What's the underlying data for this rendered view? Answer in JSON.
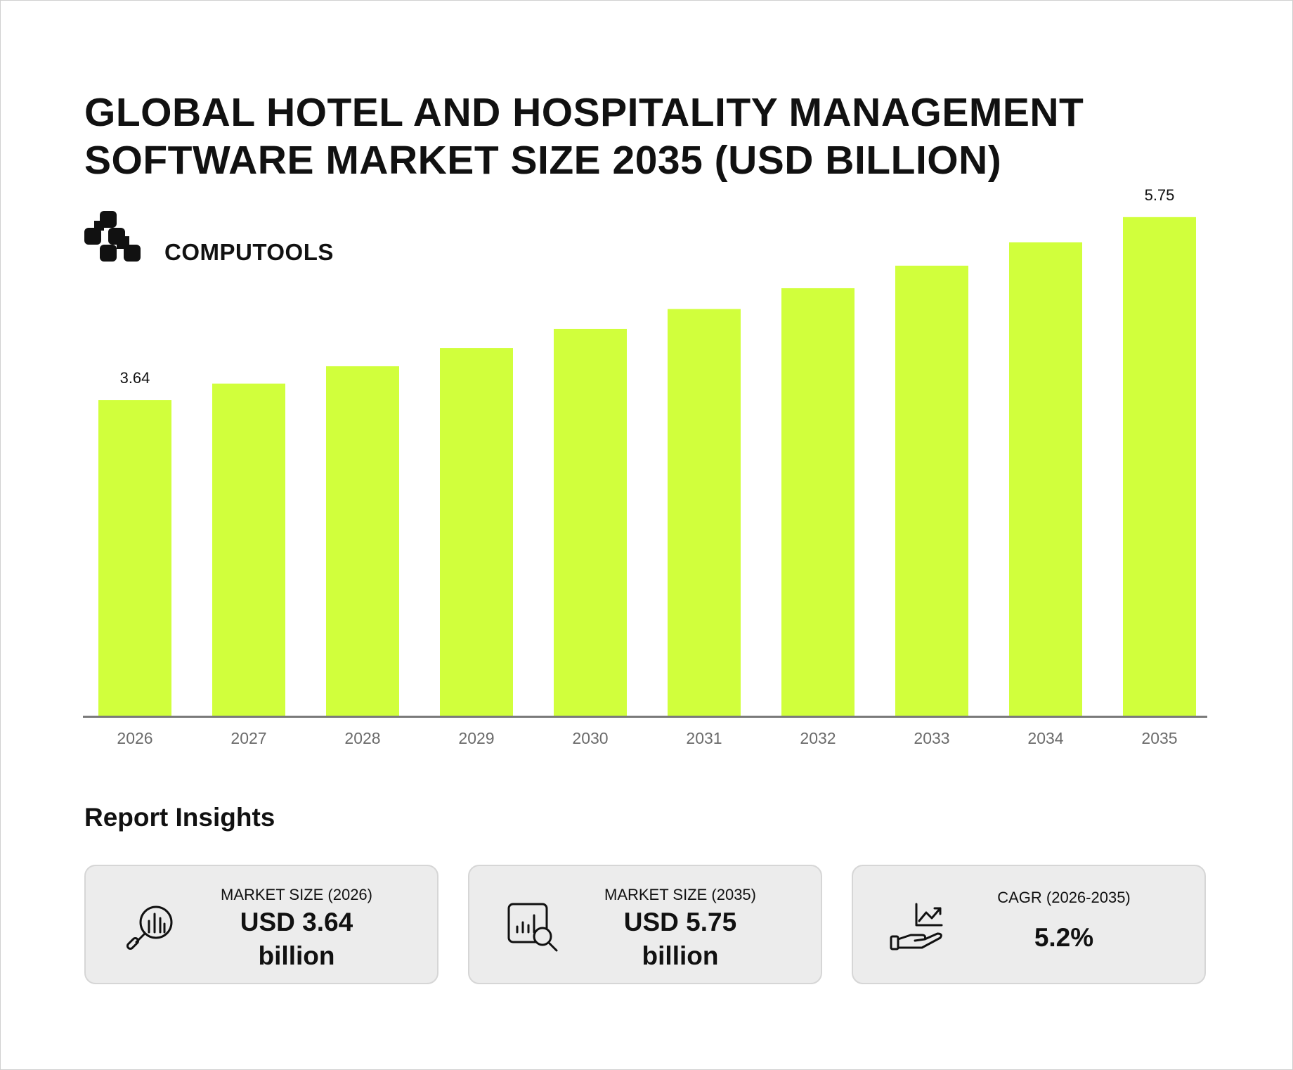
{
  "title": {
    "line1": "GLOBAL HOTEL AND HOSPITALITY MANAGEMENT",
    "line2": "SOFTWARE MARKET SIZE 2035 (USD BILLION)"
  },
  "brand": {
    "name": "COMPUTOOLS",
    "icon": "computools-logo-icon"
  },
  "colors": {
    "bar": "#d1ff3c",
    "axis": "#7a7a7a",
    "card_bg": "#ececec",
    "card_border": "#d6d6d6"
  },
  "chart_data": {
    "type": "bar",
    "categories": [
      "2026",
      "2027",
      "2028",
      "2029",
      "2030",
      "2031",
      "2032",
      "2033",
      "2034",
      "2035"
    ],
    "values": [
      3.64,
      3.83,
      4.03,
      4.24,
      4.46,
      4.69,
      4.93,
      5.19,
      5.46,
      5.75
    ],
    "data_labels": [
      "3.64",
      "",
      "",
      "",
      "",
      "",
      "",
      "",
      "",
      "5.75"
    ],
    "ylim": [
      0,
      6.0
    ],
    "grid": false,
    "legend": "none"
  },
  "insights": {
    "title": "Report Insights",
    "cards": [
      {
        "icon": "magnifier-chart-icon",
        "label": "MARKET SIZE (2026)",
        "value_line1": "USD 3.64",
        "value_line2": "billion"
      },
      {
        "icon": "chart-search-icon",
        "label": "MARKET SIZE (2035)",
        "value_line1": "USD 5.75",
        "value_line2": "billion"
      },
      {
        "icon": "hand-growth-icon",
        "label": "CAGR (2026-2035)",
        "value_line1": "5.2%",
        "value_line2": ""
      }
    ]
  }
}
